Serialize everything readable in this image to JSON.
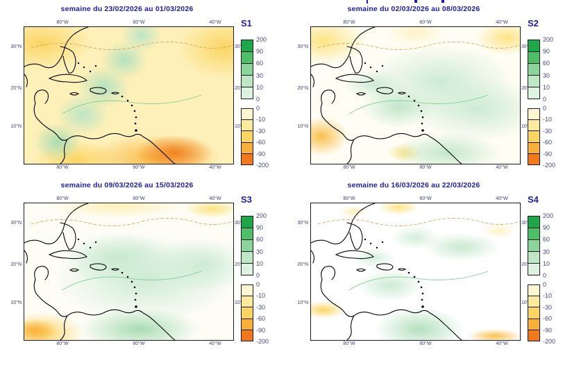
{
  "panels": [
    {
      "label": "S1",
      "title": "semaine du 23/02/2026 au 01/03/2026"
    },
    {
      "label": "S2",
      "title": "semaine du 02/03/2026 au 08/03/2026"
    },
    {
      "label": "S3",
      "title": "semaine du 09/03/2026 au 15/03/2026"
    },
    {
      "label": "S4",
      "title": "semaine du 16/03/2026 au 22/03/2026"
    }
  ],
  "axes": {
    "lon_labels": [
      "80°W",
      "60°W",
      "40°W"
    ],
    "lat_labels": [
      "30°N",
      "20°N",
      "10°N"
    ]
  },
  "colorbar": {
    "positive": {
      "labels": [
        "200",
        "90",
        "60",
        "30",
        "10",
        "0"
      ],
      "colors": [
        "#1fa64a",
        "#4fbe68",
        "#8cd49c",
        "#bfe7c6",
        "#def2e1"
      ]
    },
    "negative": {
      "labels": [
        "0",
        "-10",
        "-30",
        "-60",
        "-90",
        "-200"
      ],
      "colors": [
        "#fdf6d0",
        "#fceb9e",
        "#fbd564",
        "#f9b03a",
        "#f0791e"
      ]
    }
  },
  "colors": {
    "title_text": "#1c1ca8",
    "tick_text": "#3c3c7a",
    "colorbar_label_text": "#44447e",
    "coastline": "#000000",
    "zero_contour_dashed": "#e09c50",
    "green_contour": "#7ccb8e"
  },
  "chart_data": {
    "type": "heatmap",
    "panels": [
      "semaine du 23/02/2026 au 01/03/2026",
      "semaine du 02/03/2026 au 08/03/2026",
      "semaine du 09/03/2026 au 15/03/2026",
      "semaine du 16/03/2026 au 22/03/2026"
    ],
    "panel_labels": [
      "S1",
      "S2",
      "S3",
      "S4"
    ],
    "scale_levels": [
      -200,
      -90,
      -60,
      -30,
      -10,
      0,
      10,
      30,
      60,
      90,
      200
    ],
    "lon_ticks": [
      "80°W",
      "60°W",
      "40°W"
    ],
    "lat_ticks": [
      "30°N",
      "20°N",
      "10°N"
    ],
    "legend_position": "right of each panel"
  }
}
